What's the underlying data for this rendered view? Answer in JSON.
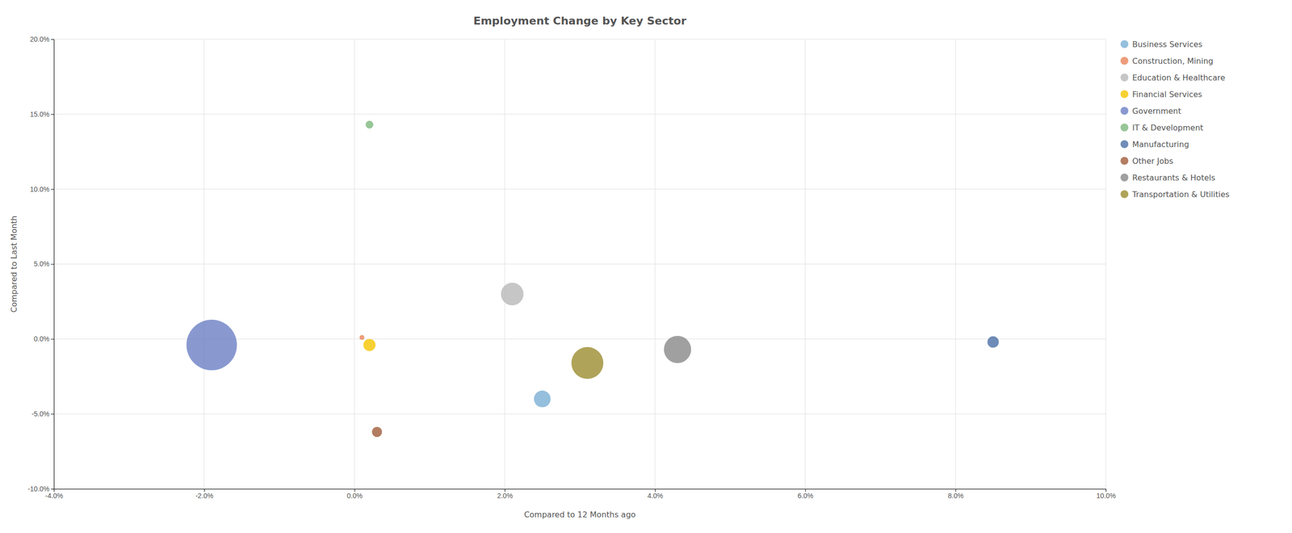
{
  "chart_data": {
    "type": "scatter",
    "title": "Employment Change by Key Sector",
    "xlabel": "Compared to 12 Months ago",
    "ylabel": "Compared to Last Month",
    "xlim": [
      -0.04,
      0.1
    ],
    "ylim": [
      -0.1,
      0.2
    ],
    "xticks": [
      {
        "value": -0.04,
        "label": "-4.0%"
      },
      {
        "value": -0.02,
        "label": "-2.0%"
      },
      {
        "value": 0.0,
        "label": "0.0%"
      },
      {
        "value": 0.02,
        "label": "2.0%"
      },
      {
        "value": 0.04,
        "label": "4.0%"
      },
      {
        "value": 0.06,
        "label": "6.0%"
      },
      {
        "value": 0.08,
        "label": "8.0%"
      },
      {
        "value": 0.1,
        "label": "10.0%"
      }
    ],
    "yticks": [
      {
        "value": -0.1,
        "label": "-10.0%"
      },
      {
        "value": -0.05,
        "label": "-5.0%"
      },
      {
        "value": 0.0,
        "label": "0.0%"
      },
      {
        "value": 0.05,
        "label": "5.0%"
      },
      {
        "value": 0.1,
        "label": "10.0%"
      },
      {
        "value": 0.15,
        "label": "15.0%"
      },
      {
        "value": 0.2,
        "label": "20.0%"
      }
    ],
    "grid": true,
    "legend": "right",
    "series": [
      {
        "name": "Business Services",
        "color": "#7bafd4",
        "x": [
          0.025
        ],
        "values": [
          -0.04
        ],
        "sizes": [
          600
        ]
      },
      {
        "name": "Construction, Mining",
        "color": "#e8855a",
        "x": [
          0.001
        ],
        "values": [
          0.001
        ],
        "sizes": [
          50
        ]
      },
      {
        "name": "Education & Healthcare",
        "color": "#b8b8b8",
        "x": [
          0.021
        ],
        "values": [
          0.03
        ],
        "sizes": [
          1100
        ]
      },
      {
        "name": "Financial Services",
        "color": "#f5c500",
        "x": [
          0.002
        ],
        "values": [
          -0.004
        ],
        "sizes": [
          320
        ]
      },
      {
        "name": "Government",
        "color": "#6b7fc4",
        "x": [
          -0.019
        ],
        "values": [
          -0.004
        ],
        "sizes": [
          5500
        ]
      },
      {
        "name": "IT & Development",
        "color": "#7db87d",
        "x": [
          0.002
        ],
        "values": [
          0.143
        ],
        "sizes": [
          130
        ]
      },
      {
        "name": "Manufacturing",
        "color": "#4a6fa5",
        "x": [
          0.085
        ],
        "values": [
          -0.002
        ],
        "sizes": [
          280
        ]
      },
      {
        "name": "Other Jobs",
        "color": "#a05d3a",
        "x": [
          0.003
        ],
        "values": [
          -0.062
        ],
        "sizes": [
          220
        ]
      },
      {
        "name": "Restaurants & Hotels",
        "color": "#888888",
        "x": [
          0.043
        ],
        "values": [
          -0.007
        ],
        "sizes": [
          1600
        ]
      },
      {
        "name": "Transportation & Utilities",
        "color": "#9b8c30",
        "x": [
          0.031
        ],
        "values": [
          -0.016
        ],
        "sizes": [
          2200
        ]
      }
    ]
  }
}
